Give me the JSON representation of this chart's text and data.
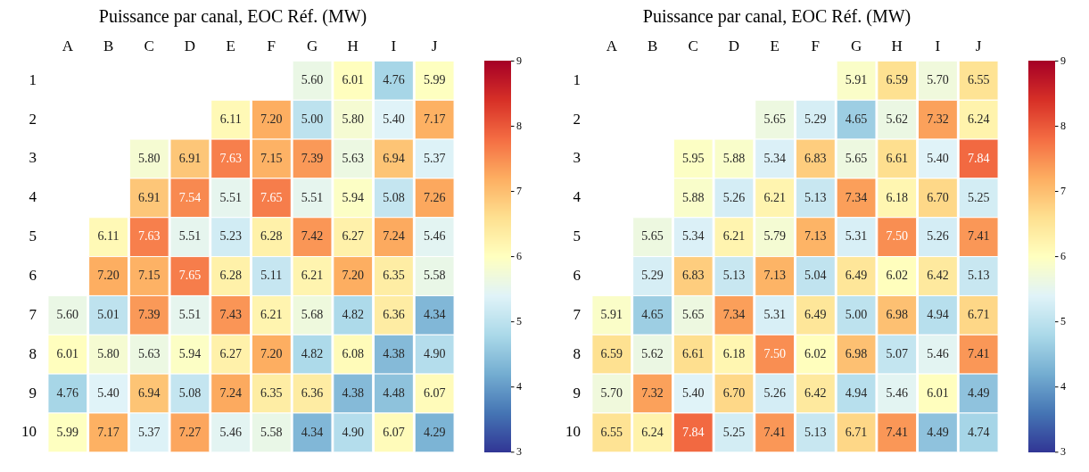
{
  "chart_data": [
    {
      "type": "heatmap",
      "title": "Puissance par canal, EOC Réf. (MW)",
      "categories": [
        "A",
        "B",
        "C",
        "D",
        "E",
        "F",
        "G",
        "H",
        "I",
        "J"
      ],
      "y_categories": [
        "1",
        "2",
        "3",
        "4",
        "5",
        "6",
        "7",
        "8",
        "9",
        "10"
      ],
      "clim": [
        3,
        9
      ],
      "cticks": [
        3,
        4,
        5,
        6,
        7,
        8,
        9
      ],
      "data_labels": true,
      "cells": [
        [
          null,
          null,
          null,
          null,
          null,
          null,
          5.6,
          6.01,
          4.76,
          5.99
        ],
        [
          null,
          null,
          null,
          null,
          6.11,
          7.2,
          5.0,
          5.8,
          5.4,
          7.17
        ],
        [
          null,
          null,
          5.8,
          6.91,
          7.63,
          7.15,
          7.39,
          5.63,
          6.94,
          5.37
        ],
        [
          null,
          null,
          6.91,
          7.54,
          5.51,
          7.65,
          5.51,
          5.94,
          5.08,
          7.26
        ],
        [
          null,
          6.11,
          7.63,
          5.51,
          5.23,
          6.28,
          7.42,
          6.27,
          7.24,
          5.46
        ],
        [
          null,
          7.2,
          7.15,
          7.65,
          6.28,
          5.11,
          6.21,
          7.2,
          6.35,
          5.58
        ],
        [
          5.6,
          5.01,
          7.39,
          5.51,
          7.43,
          6.21,
          5.68,
          4.82,
          6.36,
          4.34
        ],
        [
          6.01,
          5.8,
          5.63,
          5.94,
          6.27,
          7.2,
          4.82,
          6.08,
          4.38,
          4.9
        ],
        [
          4.76,
          5.4,
          6.94,
          5.08,
          7.24,
          6.35,
          6.36,
          4.38,
          4.48,
          6.07
        ],
        [
          5.99,
          7.17,
          5.37,
          7.27,
          5.46,
          5.58,
          4.34,
          4.9,
          6.07,
          4.29
        ]
      ],
      "cell_labels": [
        [
          null,
          null,
          null,
          null,
          null,
          null,
          "5.60",
          "6.01",
          "4.76",
          "5.99"
        ],
        [
          null,
          null,
          null,
          null,
          "6.11",
          "7.20",
          "5.00",
          "5.80",
          "5.40",
          "7.17"
        ],
        [
          null,
          null,
          "5.80",
          "6.91",
          "7.63",
          "7.15",
          "7.39",
          "5.63",
          "6.94",
          "5.37"
        ],
        [
          null,
          null,
          "6.91",
          "7.54",
          "5.51",
          "7.65",
          "5.51",
          "5.94",
          "5.08",
          "7.26"
        ],
        [
          null,
          "6.11",
          "7.63",
          "5.51",
          "5.23",
          "6.28",
          "7.42",
          "6.27",
          "7.24",
          "5.46"
        ],
        [
          null,
          "7.20",
          "7.15",
          "7.65",
          "6.28",
          "5.11",
          "6.21",
          "7.20",
          "6.35",
          "5.58"
        ],
        [
          "5.60",
          "5.01",
          "7.39",
          "5.51",
          "7.43",
          "6.21",
          "5.68",
          "4.82",
          "6.36",
          "4.34"
        ],
        [
          "6.01",
          "5.80",
          "5.63",
          "5.94",
          "6.27",
          "7.20",
          "4.82",
          "6.08",
          "4.38",
          "4.90"
        ],
        [
          "4.76",
          "5.40",
          "6.94",
          "5.08",
          "7.24",
          "6.35",
          "6.36",
          "4.38",
          "4.48",
          "6.07"
        ],
        [
          "5.99",
          "7.17",
          "5.37",
          "7.27",
          "5.46",
          "5.58",
          "4.34",
          "4.90",
          "6.07",
          "4.29"
        ]
      ]
    },
    {
      "type": "heatmap",
      "title": "Puissance par canal, EOC Réf. (MW)",
      "categories": [
        "A",
        "B",
        "C",
        "D",
        "E",
        "F",
        "G",
        "H",
        "I",
        "J"
      ],
      "y_categories": [
        "1",
        "2",
        "3",
        "4",
        "5",
        "6",
        "7",
        "8",
        "9",
        "10"
      ],
      "clim": [
        3,
        9
      ],
      "cticks": [
        3,
        4,
        5,
        6,
        7,
        8,
        9
      ],
      "data_labels": true,
      "cells": [
        [
          null,
          null,
          null,
          null,
          null,
          null,
          5.91,
          6.59,
          5.7,
          6.55
        ],
        [
          null,
          null,
          null,
          null,
          5.65,
          5.29,
          4.65,
          5.62,
          7.32,
          6.24
        ],
        [
          null,
          null,
          5.95,
          5.88,
          5.34,
          6.83,
          5.65,
          6.61,
          5.4,
          7.84
        ],
        [
          null,
          null,
          5.88,
          5.26,
          6.21,
          5.13,
          7.34,
          6.18,
          6.7,
          5.25
        ],
        [
          null,
          5.65,
          5.34,
          6.21,
          5.79,
          7.13,
          5.31,
          7.5,
          5.26,
          7.41
        ],
        [
          null,
          5.29,
          6.83,
          5.13,
          7.13,
          5.04,
          6.49,
          6.02,
          6.42,
          5.13
        ],
        [
          5.91,
          4.65,
          5.65,
          7.34,
          5.31,
          6.49,
          5.0,
          6.98,
          4.94,
          6.71
        ],
        [
          6.59,
          5.62,
          6.61,
          6.18,
          7.5,
          6.02,
          6.98,
          5.07,
          5.46,
          7.41
        ],
        [
          5.7,
          7.32,
          5.4,
          6.7,
          5.26,
          6.42,
          4.94,
          5.46,
          6.01,
          4.49
        ],
        [
          6.55,
          6.24,
          7.84,
          5.25,
          7.41,
          5.13,
          6.71,
          7.41,
          4.49,
          4.74
        ]
      ],
      "cell_labels": [
        [
          null,
          null,
          null,
          null,
          null,
          null,
          "5.91",
          "6.59",
          "5.70",
          "6.55"
        ],
        [
          null,
          null,
          null,
          null,
          "5.65",
          "5.29",
          "4.65",
          "5.62",
          "7.32",
          "6.24"
        ],
        [
          null,
          null,
          "5.95",
          "5.88",
          "5.34",
          "6.83",
          "5.65",
          "6.61",
          "5.40",
          "7.84"
        ],
        [
          null,
          null,
          "5.88",
          "5.26",
          "6.21",
          "5.13",
          "7.34",
          "6.18",
          "6.70",
          "5.25"
        ],
        [
          null,
          "5.65",
          "5.34",
          "6.21",
          "5.79",
          "7.13",
          "5.31",
          "7.50",
          "5.26",
          "7.41"
        ],
        [
          null,
          "5.29",
          "6.83",
          "5.13",
          "7.13",
          "5.04",
          "6.49",
          "6.02",
          "6.42",
          "5.13"
        ],
        [
          "5.91",
          "4.65",
          "5.65",
          "7.34",
          "5.31",
          "6.49",
          "5.00",
          "6.98",
          "4.94",
          "6.71"
        ],
        [
          "6.59",
          "5.62",
          "6.61",
          "6.18",
          "7.50",
          "6.02",
          "6.98",
          "5.07",
          "5.46",
          "7.41"
        ],
        [
          "5.70",
          "7.32",
          "5.40",
          "6.70",
          "5.26",
          "6.42",
          "4.94",
          "5.46",
          "6.01",
          "4.49"
        ],
        [
          "6.55",
          "6.24",
          "7.84",
          "5.25",
          "7.41",
          "5.13",
          "6.71",
          "7.41",
          "4.49",
          "4.74"
        ]
      ]
    }
  ]
}
